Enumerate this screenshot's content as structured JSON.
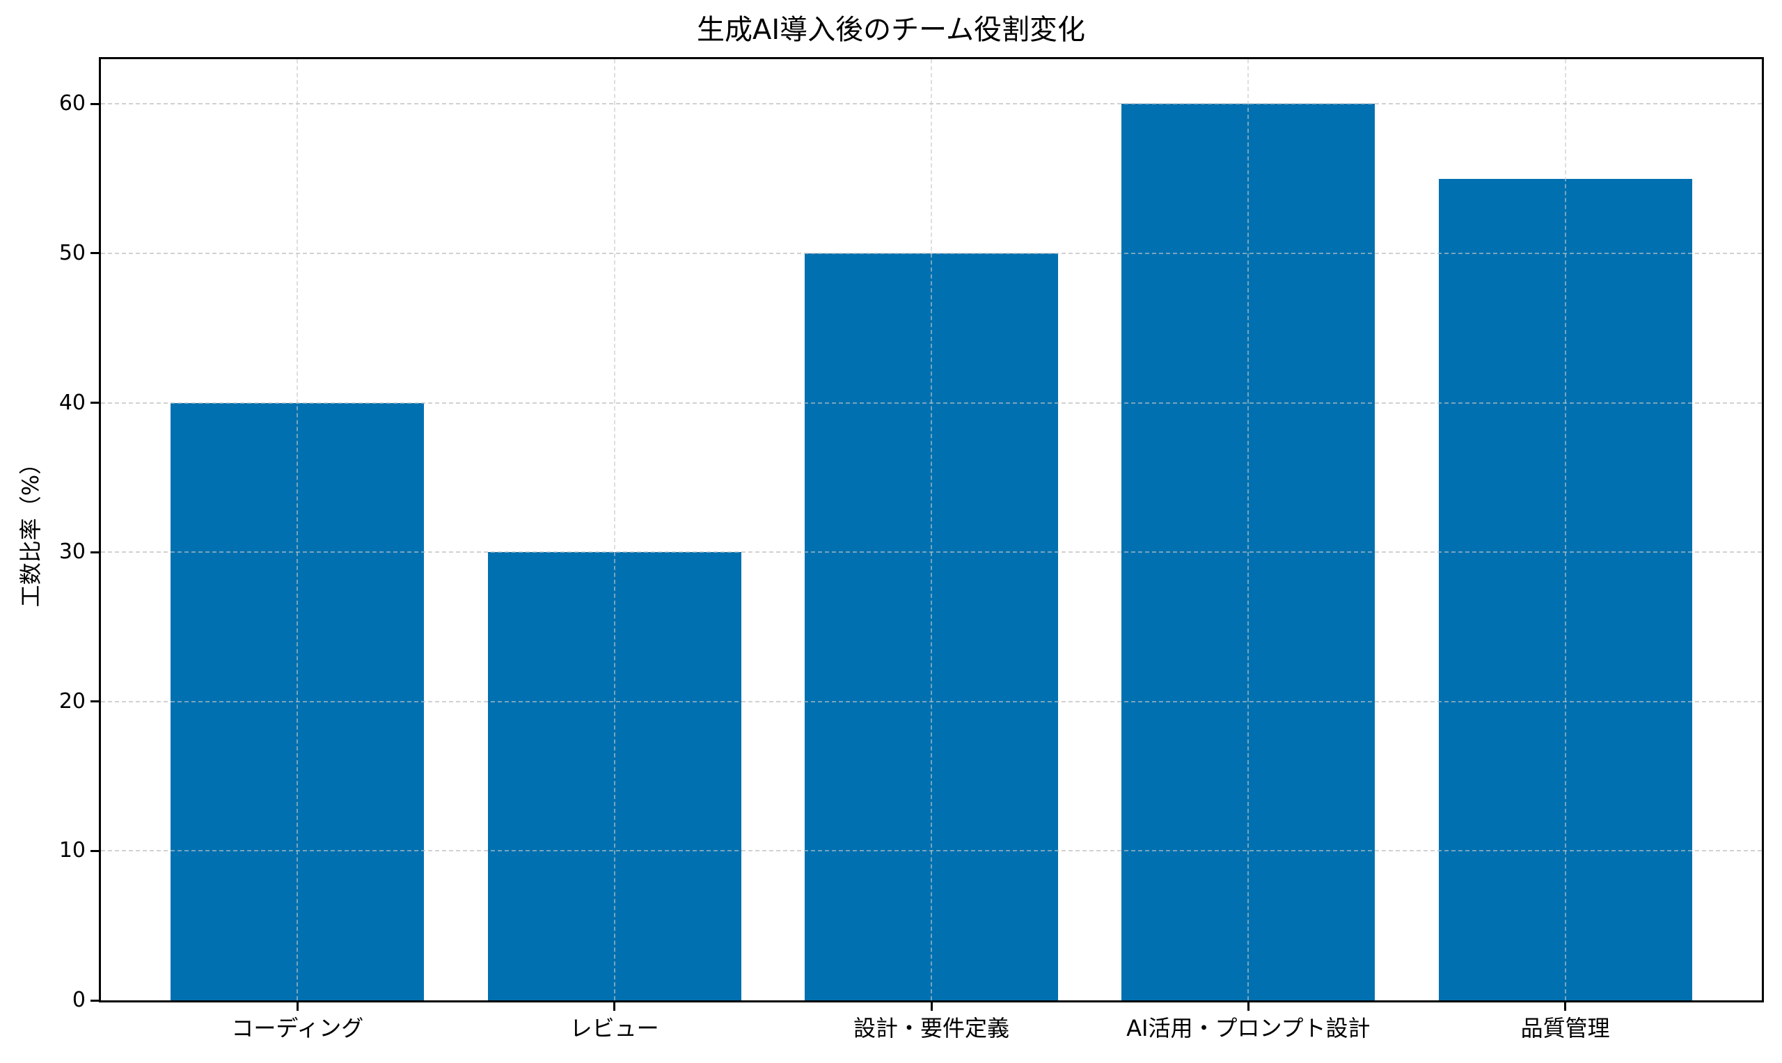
{
  "chart_data": {
    "type": "bar",
    "title": "生成AI導入後のチーム役割変化",
    "xlabel": "",
    "ylabel": "工数比率（%）",
    "categories": [
      "コーディング",
      "レビュー",
      "設計・要件定義",
      "AI活用・プロンプト設計",
      "品質管理"
    ],
    "values": [
      40,
      30,
      50,
      60,
      55
    ],
    "ylim": [
      0,
      63
    ],
    "yticks": [
      0,
      10,
      20,
      30,
      40,
      50,
      60
    ],
    "grid": true,
    "grid_style": "dashed",
    "legend": null,
    "bar_color": "#0070B0"
  }
}
